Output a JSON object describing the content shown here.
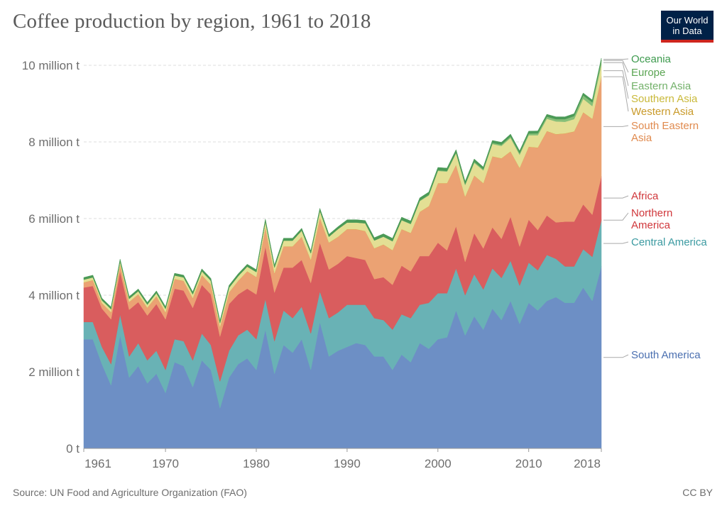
{
  "header": {
    "title": "Coffee production by region, 1961 to 2018",
    "logo_line1": "Our World",
    "logo_line2": "in Data"
  },
  "footer": {
    "source": "Source: UN Food and Agriculture Organization (FAO)",
    "license": "CC BY"
  },
  "chart_data": {
    "type": "area",
    "stacked": true,
    "title": "Coffee production by region, 1961 to 2018",
    "xlim": [
      1961,
      2018
    ],
    "ylim": [
      0,
      10000000
    ],
    "y_ticks": [
      {
        "value": 0,
        "label": "0 t"
      },
      {
        "value": 2000000,
        "label": "2 million t"
      },
      {
        "value": 4000000,
        "label": "4 million t"
      },
      {
        "value": 6000000,
        "label": "6 million t"
      },
      {
        "value": 8000000,
        "label": "8 million t"
      },
      {
        "value": 10000000,
        "label": "10 million t"
      }
    ],
    "x_ticks": [
      {
        "value": 1961,
        "label": "1961"
      },
      {
        "value": 1970,
        "label": "1970"
      },
      {
        "value": 1980,
        "label": "1980"
      },
      {
        "value": 1990,
        "label": "1990"
      },
      {
        "value": 2000,
        "label": "2000"
      },
      {
        "value": 2010,
        "label": "2010"
      },
      {
        "value": 2018,
        "label": "2018"
      }
    ],
    "grid": "horizontal dashed",
    "legend": "right, inline labels",
    "x": [
      1961,
      1962,
      1963,
      1964,
      1965,
      1966,
      1967,
      1968,
      1969,
      1970,
      1971,
      1972,
      1973,
      1974,
      1975,
      1976,
      1977,
      1978,
      1979,
      1980,
      1981,
      1982,
      1983,
      1984,
      1985,
      1986,
      1987,
      1988,
      1989,
      1990,
      1991,
      1992,
      1993,
      1994,
      1995,
      1996,
      1997,
      1998,
      1999,
      2000,
      2001,
      2002,
      2003,
      2004,
      2005,
      2006,
      2007,
      2008,
      2009,
      2010,
      2011,
      2012,
      2013,
      2014,
      2015,
      2016,
      2017,
      2018
    ],
    "series": [
      {
        "name": "South America",
        "color": "#6d8fc5",
        "values": [
          2850000,
          2850000,
          2200000,
          1650000,
          2950000,
          1850000,
          2150000,
          1700000,
          1950000,
          1450000,
          2250000,
          2150000,
          1600000,
          2300000,
          2050000,
          1050000,
          1850000,
          2200000,
          2350000,
          2050000,
          3100000,
          1950000,
          2700000,
          2500000,
          2850000,
          2050000,
          3300000,
          2400000,
          2550000,
          2650000,
          2750000,
          2700000,
          2400000,
          2400000,
          2050000,
          2450000,
          2250000,
          2750000,
          2600000,
          2850000,
          2900000,
          3600000,
          2950000,
          3450000,
          3100000,
          3650000,
          3350000,
          3850000,
          3250000,
          3800000,
          3600000,
          3850000,
          3950000,
          3800000,
          3800000,
          4200000,
          3850000,
          4750000
        ]
      },
      {
        "name": "Central America",
        "color": "#69b2b5",
        "values": [
          450000,
          450000,
          450000,
          550000,
          550000,
          550000,
          600000,
          600000,
          600000,
          600000,
          600000,
          650000,
          700000,
          700000,
          650000,
          700000,
          700000,
          750000,
          750000,
          800000,
          800000,
          850000,
          900000,
          900000,
          850000,
          950000,
          800000,
          1000000,
          1000000,
          1100000,
          1000000,
          1050000,
          1000000,
          950000,
          1050000,
          1050000,
          1150000,
          1000000,
          1200000,
          1200000,
          1150000,
          1100000,
          1050000,
          1100000,
          1050000,
          1050000,
          1100000,
          1050000,
          1000000,
          1050000,
          1050000,
          1200000,
          1000000,
          950000,
          950000,
          1000000,
          1150000,
          1200000
        ]
      },
      {
        "name": "Northern America",
        "color": "#d55d5b",
        "values": [
          20000,
          20000,
          20000,
          20000,
          20000,
          20000,
          20000,
          20000,
          20000,
          20000,
          20000,
          20000,
          20000,
          20000,
          20000,
          20000,
          20000,
          20000,
          20000,
          20000,
          20000,
          20000,
          20000,
          20000,
          20000,
          20000,
          20000,
          20000,
          20000,
          20000,
          20000,
          20000,
          20000,
          20000,
          20000,
          20000,
          20000,
          20000,
          20000,
          20000,
          20000,
          20000,
          20000,
          20000,
          20000,
          20000,
          20000,
          20000,
          20000,
          20000,
          20000,
          20000,
          20000,
          20000,
          20000,
          20000,
          20000,
          20000
        ]
      },
      {
        "name": "Africa",
        "color": "#d95d5e",
        "values": [
          880000,
          920000,
          980000,
          1150000,
          1100000,
          1200000,
          1050000,
          1150000,
          1200000,
          1300000,
          1300000,
          1300000,
          1350000,
          1250000,
          1300000,
          1150000,
          1200000,
          1050000,
          1050000,
          1150000,
          1350000,
          1250000,
          1100000,
          1300000,
          1200000,
          1300000,
          1250000,
          1250000,
          1250000,
          1250000,
          1200000,
          1150000,
          1000000,
          1100000,
          1150000,
          1250000,
          1200000,
          1250000,
          1200000,
          1300000,
          1100000,
          1080000,
          850000,
          1050000,
          1050000,
          1050000,
          1000000,
          1130000,
          1000000,
          1100000,
          1030000,
          1010000,
          930000,
          1150000,
          1150000,
          1150000,
          1080000,
          1130000
        ]
      },
      {
        "name": "South Eastern Asia",
        "color": "#eba273",
        "values": [
          130000,
          150000,
          140000,
          180000,
          180000,
          200000,
          200000,
          200000,
          200000,
          180000,
          250000,
          250000,
          250000,
          250000,
          250000,
          250000,
          300000,
          350000,
          450000,
          450000,
          500000,
          500000,
          550000,
          550000,
          600000,
          600000,
          650000,
          700000,
          700000,
          700000,
          750000,
          750000,
          800000,
          850000,
          900000,
          950000,
          1000000,
          1150000,
          1300000,
          1550000,
          1750000,
          1600000,
          1700000,
          1500000,
          1700000,
          1850000,
          2100000,
          1700000,
          2050000,
          1900000,
          2150000,
          2200000,
          2300000,
          2300000,
          2350000,
          2400000,
          2500000,
          2600000
        ]
      },
      {
        "name": "Western Asia",
        "color": "#d6a93b",
        "values": [
          5000,
          5000,
          5000,
          5000,
          5000,
          5000,
          5000,
          5000,
          5000,
          5000,
          5000,
          5000,
          5000,
          5000,
          5000,
          5000,
          5000,
          5000,
          5000,
          5000,
          5000,
          5000,
          5000,
          5000,
          5000,
          5000,
          5000,
          5000,
          5000,
          5000,
          5000,
          5000,
          5000,
          5000,
          5000,
          5000,
          5000,
          5000,
          5000,
          5000,
          5000,
          5000,
          5000,
          5000,
          5000,
          5000,
          5000,
          5000,
          5000,
          5000,
          5000,
          5000,
          5000,
          5000,
          5000,
          5000,
          5000,
          5000
        ]
      },
      {
        "name": "Southern Asia",
        "color": "#e3df94",
        "values": [
          70000,
          70000,
          70000,
          80000,
          80000,
          80000,
          80000,
          80000,
          80000,
          90000,
          90000,
          90000,
          100000,
          100000,
          100000,
          100000,
          120000,
          120000,
          120000,
          130000,
          150000,
          150000,
          150000,
          150000,
          160000,
          170000,
          180000,
          150000,
          200000,
          170000,
          170000,
          200000,
          200000,
          200000,
          230000,
          230000,
          230000,
          280000,
          280000,
          320000,
          300000,
          300000,
          300000,
          330000,
          330000,
          320000,
          320000,
          350000,
          340000,
          300000,
          320000,
          320000,
          330000,
          300000,
          320000,
          350000,
          330000,
          310000
        ]
      },
      {
        "name": "Eastern Asia",
        "color": "#86bf78",
        "values": [
          1000,
          1000,
          1000,
          1000,
          1000,
          1000,
          1000,
          1000,
          1000,
          1000,
          1000,
          1000,
          1000,
          1000,
          1000,
          1000,
          1000,
          1000,
          1000,
          1000,
          1000,
          1000,
          1000,
          1000,
          1000,
          1000,
          1000,
          1000,
          2000,
          2000,
          3000,
          3000,
          5000,
          6000,
          8000,
          10000,
          12000,
          14000,
          16000,
          18000,
          20000,
          22000,
          25000,
          28000,
          30000,
          32000,
          35000,
          38000,
          40000,
          45000,
          50000,
          55000,
          60000,
          70000,
          80000,
          90000,
          100000,
          110000
        ]
      },
      {
        "name": "Europe",
        "color": "#6fae5d",
        "values": [
          1000,
          1000,
          1000,
          1000,
          1000,
          1000,
          1000,
          1000,
          1000,
          1000,
          1000,
          1000,
          1000,
          1000,
          1000,
          1000,
          1000,
          1000,
          1000,
          1000,
          1000,
          1000,
          1000,
          1000,
          1000,
          1000,
          1000,
          1000,
          1000,
          1000,
          1000,
          1000,
          1000,
          1000,
          1000,
          1000,
          1000,
          1000,
          1000,
          1000,
          1000,
          1000,
          1000,
          1000,
          1000,
          1000,
          1000,
          1000,
          1000,
          1000,
          1000,
          1000,
          1000,
          1000,
          1000,
          1000,
          1000,
          1000
        ]
      },
      {
        "name": "Oceania",
        "color": "#4b9a57",
        "values": [
          55000,
          55000,
          55000,
          55000,
          55000,
          55000,
          55000,
          55000,
          55000,
          55000,
          55000,
          55000,
          60000,
          60000,
          60000,
          60000,
          60000,
          60000,
          60000,
          60000,
          60000,
          60000,
          60000,
          60000,
          60000,
          60000,
          60000,
          60000,
          60000,
          70000,
          70000,
          70000,
          70000,
          70000,
          70000,
          70000,
          70000,
          70000,
          70000,
          70000,
          70000,
          70000,
          70000,
          70000,
          60000,
          60000,
          60000,
          60000,
          60000,
          60000,
          60000,
          60000,
          60000,
          60000,
          60000,
          60000,
          60000,
          60000
        ]
      }
    ],
    "legend_labels": [
      {
        "series": "Oceania",
        "lines": [
          "Oceania"
        ],
        "color": "#3d9a4e"
      },
      {
        "series": "Europe",
        "lines": [
          "Europe"
        ],
        "color": "#5ba553"
      },
      {
        "series": "Eastern Asia",
        "lines": [
          "Eastern Asia"
        ],
        "color": "#73b16a"
      },
      {
        "series": "Southern Asia",
        "lines": [
          "Southern Asia"
        ],
        "color": "#c9b93a"
      },
      {
        "series": "Western Asia",
        "lines": [
          "Western Asia"
        ],
        "color": "#c99a2a"
      },
      {
        "series": "South Eastern Asia",
        "lines": [
          "South Eastern",
          "Asia"
        ],
        "color": "#e08a4e"
      },
      {
        "series": "Africa",
        "lines": [
          "Africa"
        ],
        "color": "#d0373b"
      },
      {
        "series": "Northern America",
        "lines": [
          "Northern",
          "America"
        ],
        "color": "#d0373b"
      },
      {
        "series": "Central America",
        "lines": [
          "Central America"
        ],
        "color": "#3b9aa1"
      },
      {
        "series": "South America",
        "lines": [
          "South America"
        ],
        "color": "#4a6fb0"
      }
    ]
  }
}
